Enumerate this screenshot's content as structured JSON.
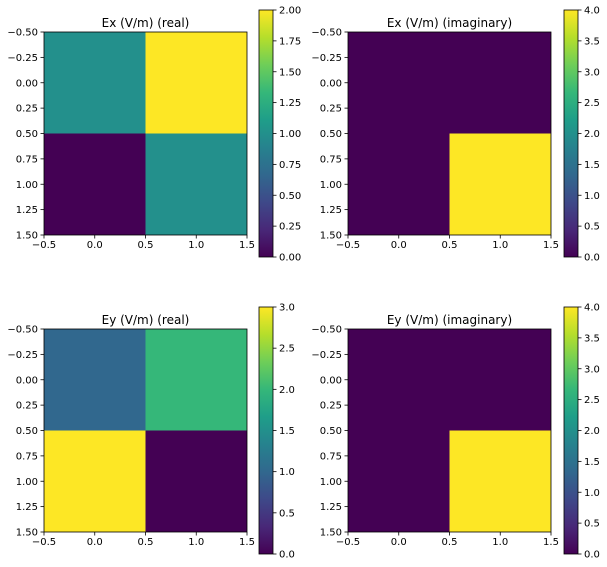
{
  "chart_data": [
    {
      "type": "heatmap",
      "title": "Ex (V/m) (real)",
      "xlabel": "",
      "ylabel": "",
      "x_ticks": [
        "−0.5",
        "0.0",
        "0.5",
        "1.0",
        "1.5"
      ],
      "y_ticks": [
        "−0.50",
        "−0.25",
        "0.00",
        "0.25",
        "0.50",
        "0.75",
        "1.00",
        "1.25",
        "1.50"
      ],
      "xlim": [
        -0.5,
        1.5
      ],
      "ylim": [
        1.5,
        -0.5
      ],
      "values": [
        [
          1,
          2
        ],
        [
          0,
          1
        ]
      ],
      "colorbar": {
        "vmin": 0,
        "vmax": 2,
        "ticks": [
          "0.00",
          "0.25",
          "0.50",
          "0.75",
          "1.00",
          "1.25",
          "1.50",
          "1.75",
          "2.00"
        ],
        "tick_values": [
          0,
          0.25,
          0.5,
          0.75,
          1.0,
          1.25,
          1.5,
          1.75,
          2.0
        ]
      }
    },
    {
      "type": "heatmap",
      "title": "Ex (V/m) (imaginary)",
      "xlabel": "",
      "ylabel": "",
      "x_ticks": [
        "−0.5",
        "0.0",
        "0.5",
        "1.0",
        "1.5"
      ],
      "y_ticks": [
        "−0.50",
        "−0.25",
        "0.00",
        "0.25",
        "0.50",
        "0.75",
        "1.00",
        "1.25",
        "1.50"
      ],
      "xlim": [
        -0.5,
        1.5
      ],
      "ylim": [
        1.5,
        -0.5
      ],
      "values": [
        [
          0,
          0
        ],
        [
          0,
          4
        ]
      ],
      "colorbar": {
        "vmin": 0,
        "vmax": 4,
        "ticks": [
          "0.0",
          "0.5",
          "1.0",
          "1.5",
          "2.0",
          "2.5",
          "3.0",
          "3.5",
          "4.0"
        ],
        "tick_values": [
          0,
          0.5,
          1.0,
          1.5,
          2.0,
          2.5,
          3.0,
          3.5,
          4.0
        ]
      }
    },
    {
      "type": "heatmap",
      "title": "Ey (V/m) (real)",
      "xlabel": "",
      "ylabel": "",
      "x_ticks": [
        "−0.5",
        "0.0",
        "0.5",
        "1.0",
        "1.5"
      ],
      "y_ticks": [
        "−0.50",
        "−0.25",
        "0.00",
        "0.25",
        "0.50",
        "0.75",
        "1.00",
        "1.25",
        "1.50"
      ],
      "xlim": [
        -0.5,
        1.5
      ],
      "ylim": [
        1.5,
        -0.5
      ],
      "values": [
        [
          1,
          2
        ],
        [
          3,
          0
        ]
      ],
      "colorbar": {
        "vmin": 0,
        "vmax": 3,
        "ticks": [
          "0.0",
          "0.5",
          "1.0",
          "1.5",
          "2.0",
          "2.5",
          "3.0"
        ],
        "tick_values": [
          0,
          0.5,
          1.0,
          1.5,
          2.0,
          2.5,
          3.0
        ]
      }
    },
    {
      "type": "heatmap",
      "title": "Ey (V/m) (imaginary)",
      "xlabel": "",
      "ylabel": "",
      "x_ticks": [
        "−0.5",
        "0.0",
        "0.5",
        "1.0",
        "1.5"
      ],
      "y_ticks": [
        "−0.50",
        "−0.25",
        "0.00",
        "0.25",
        "0.50",
        "0.75",
        "1.00",
        "1.25",
        "1.50"
      ],
      "xlim": [
        -0.5,
        1.5
      ],
      "ylim": [
        1.5,
        -0.5
      ],
      "values": [
        [
          0,
          0
        ],
        [
          0,
          4
        ]
      ],
      "colorbar": {
        "vmin": 0,
        "vmax": 4,
        "ticks": [
          "0.0",
          "0.5",
          "1.0",
          "1.5",
          "2.0",
          "2.5",
          "3.0",
          "3.5",
          "4.0"
        ],
        "tick_values": [
          0,
          0.5,
          1.0,
          1.5,
          2.0,
          2.5,
          3.0,
          3.5,
          4.0
        ]
      }
    }
  ],
  "colormap": {
    "name": "viridis",
    "stops": [
      "#440154",
      "#482878",
      "#3e4989",
      "#31688e",
      "#26828e",
      "#1f9e89",
      "#35b779",
      "#6ece58",
      "#b5de2b",
      "#fde725"
    ]
  }
}
